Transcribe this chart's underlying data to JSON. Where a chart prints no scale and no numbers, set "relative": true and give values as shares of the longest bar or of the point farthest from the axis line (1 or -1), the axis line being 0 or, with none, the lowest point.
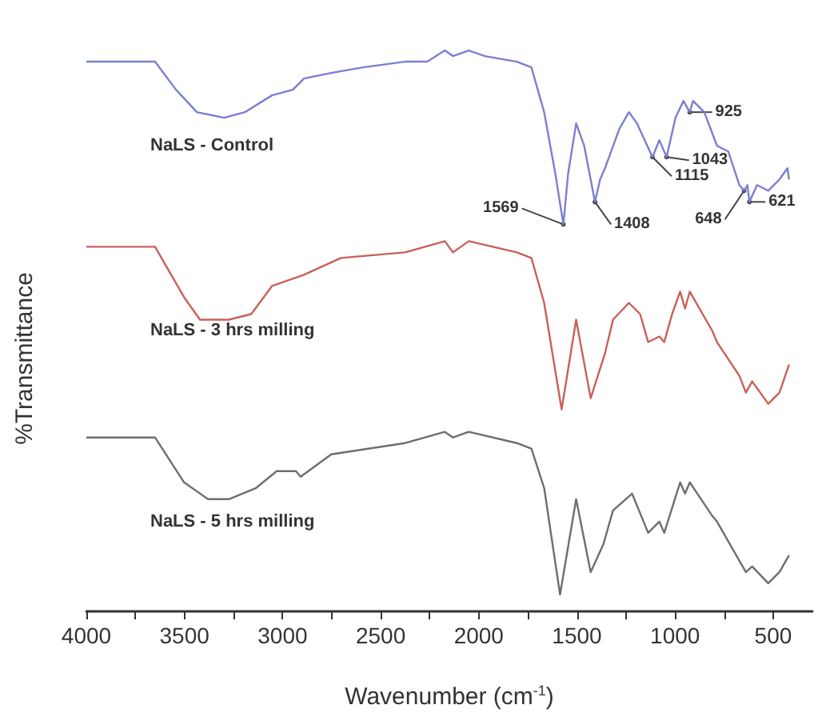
{
  "chart_data": {
    "type": "line",
    "relative": true,
    "xlabel": "Wavenumber (cm$^{-1}$)",
    "ylabel": "%Transmittance",
    "xlim": [
      4000,
      300
    ],
    "xticks": [
      4000,
      {
        "value": 3750,
        "label": null
      },
      3500,
      {
        "value": 3250,
        "label": null
      },
      3000,
      {
        "value": 2750,
        "label": null
      },
      2500,
      {
        "value": 2250,
        "label": null
      },
      2000,
      {
        "value": 1750,
        "label": null
      },
      1500,
      {
        "value": 1250,
        "label": null
      },
      1000,
      {
        "value": 750,
        "label": null
      },
      500
    ],
    "series": [
      {
        "name": "NaLS - Control",
        "color": "#7b7fcf",
        "x": [
          4000,
          3650,
          3543,
          3437,
          3298,
          3192,
          3054,
          2948,
          2891,
          2752,
          2589,
          2377,
          2263,
          2173,
          2132,
          2051,
          1969,
          1806,
          1732,
          1667,
          1610,
          1569,
          1545,
          1504,
          1463,
          1408,
          1382,
          1357,
          1284,
          1235,
          1194,
          1115,
          1080,
          1043,
          998,
          957,
          925,
          908,
          851,
          786,
          729,
          672,
          648,
          631,
          621,
          582,
          525,
          468,
          427,
          419
        ],
        "values": [
          0.98,
          0.98,
          0.93,
          0.89,
          0.88,
          0.89,
          0.92,
          0.93,
          0.95,
          0.96,
          0.97,
          0.98,
          0.98,
          1.0,
          0.99,
          1.0,
          0.99,
          0.98,
          0.97,
          0.89,
          0.78,
          0.69,
          0.78,
          0.87,
          0.83,
          0.73,
          0.77,
          0.79,
          0.86,
          0.89,
          0.87,
          0.81,
          0.84,
          0.81,
          0.88,
          0.91,
          0.89,
          0.91,
          0.89,
          0.83,
          0.82,
          0.76,
          0.75,
          0.76,
          0.73,
          0.76,
          0.75,
          0.77,
          0.79,
          0.77
        ]
      },
      {
        "name": "NaLS - 3 hrs milling",
        "color": "#c8605a",
        "x": [
          4000,
          3650,
          3502,
          3421,
          3274,
          3160,
          3054,
          2891,
          2703,
          2377,
          2173,
          2132,
          2051,
          1806,
          1732,
          1667,
          1578,
          1504,
          1430,
          1357,
          1316,
          1235,
          1178,
          1137,
          1080,
          1055,
          1015,
          974,
          949,
          925,
          810,
          786,
          672,
          639,
          607,
          525,
          468,
          419
        ],
        "values": [
          0.65,
          0.65,
          0.56,
          0.52,
          0.52,
          0.53,
          0.58,
          0.6,
          0.63,
          0.64,
          0.66,
          0.64,
          0.66,
          0.64,
          0.63,
          0.55,
          0.36,
          0.52,
          0.38,
          0.46,
          0.52,
          0.55,
          0.53,
          0.48,
          0.49,
          0.48,
          0.53,
          0.57,
          0.54,
          0.57,
          0.5,
          0.48,
          0.42,
          0.39,
          0.41,
          0.37,
          0.39,
          0.44
        ]
      },
      {
        "name": "NaLS - 5 hrs milling",
        "color": "#6e6e6e",
        "x": [
          4000,
          3650,
          3502,
          3380,
          3274,
          3135,
          3030,
          2932,
          2908,
          2752,
          2377,
          2173,
          2132,
          2051,
          1806,
          1732,
          1667,
          1586,
          1504,
          1430,
          1365,
          1316,
          1219,
          1137,
          1080,
          1055,
          974,
          949,
          925,
          810,
          786,
          672,
          639,
          607,
          525,
          468,
          419
        ],
        "values": [
          0.31,
          0.31,
          0.23,
          0.2,
          0.2,
          0.22,
          0.25,
          0.25,
          0.24,
          0.28,
          0.3,
          0.32,
          0.31,
          0.32,
          0.3,
          0.29,
          0.22,
          0.03,
          0.2,
          0.07,
          0.12,
          0.18,
          0.21,
          0.14,
          0.16,
          0.14,
          0.23,
          0.21,
          0.23,
          0.17,
          0.16,
          0.09,
          0.07,
          0.08,
          0.05,
          0.07,
          0.1
        ]
      }
    ],
    "annotations": [
      {
        "text": "1569",
        "x": 1569,
        "y": 0.69
      },
      {
        "text": "1408",
        "x": 1408,
        "y": 0.73
      },
      {
        "text": "1115",
        "x": 1115,
        "y": 0.81
      },
      {
        "text": "1043",
        "x": 1043,
        "y": 0.81
      },
      {
        "text": "925",
        "x": 925,
        "y": 0.89
      },
      {
        "text": "648",
        "x": 648,
        "y": 0.75
      },
      {
        "text": "621",
        "x": 621,
        "y": 0.73
      }
    ]
  }
}
